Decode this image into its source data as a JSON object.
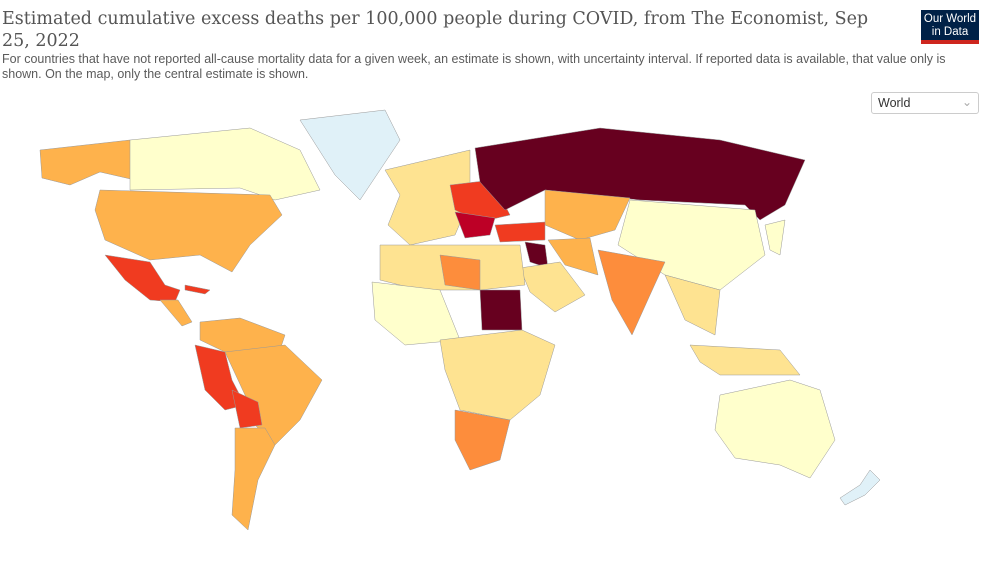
{
  "header": {
    "title": "Estimated cumulative excess deaths per 100,000 people during COVID, from The Economist, Sep 25, 2022",
    "subtitle": "For countries that have not reported all-cause mortality data for a given week, an estimate is shown, with uncertainty interval. If reported data is available, that value only is shown. On the map, only the central estimate is shown.",
    "logo": "Our World in Data"
  },
  "region_select": {
    "value": "World"
  },
  "colors": {
    "very_low": "#ffffcc",
    "low": "#fee391",
    "medium": "#feb24c",
    "high": "#fd8d3c",
    "very_high": "#f03b20",
    "extreme": "#bd0026",
    "max": "#67001f",
    "no_data": "#e0f1f8"
  },
  "regions": [
    {
      "name": "Alaska",
      "level": "medium"
    },
    {
      "name": "Canada",
      "level": "very_low"
    },
    {
      "name": "United States",
      "level": "medium"
    },
    {
      "name": "Mexico",
      "level": "very_high"
    },
    {
      "name": "Central America",
      "level": "medium"
    },
    {
      "name": "Cuba",
      "level": "very_high"
    },
    {
      "name": "Greenland",
      "level": "no_data"
    },
    {
      "name": "Northern South America",
      "level": "medium"
    },
    {
      "name": "Brazil",
      "level": "medium"
    },
    {
      "name": "Peru",
      "level": "very_high"
    },
    {
      "name": "Bolivia",
      "level": "very_high"
    },
    {
      "name": "Argentina",
      "level": "medium"
    },
    {
      "name": "Western Europe",
      "level": "low"
    },
    {
      "name": "Eastern Europe",
      "level": "very_high"
    },
    {
      "name": "Balkans",
      "level": "extreme"
    },
    {
      "name": "Russia",
      "level": "max"
    },
    {
      "name": "Central Asia",
      "level": "medium"
    },
    {
      "name": "Turkey",
      "level": "very_high"
    },
    {
      "name": "Iraq",
      "level": "max"
    },
    {
      "name": "Arabia",
      "level": "low"
    },
    {
      "name": "Iran",
      "level": "medium"
    },
    {
      "name": "China",
      "level": "very_low"
    },
    {
      "name": "India",
      "level": "high"
    },
    {
      "name": "Southeast Asia",
      "level": "low"
    },
    {
      "name": "Indonesia",
      "level": "low"
    },
    {
      "name": "North Africa",
      "level": "low"
    },
    {
      "name": "Libya",
      "level": "high"
    },
    {
      "name": "Sudan",
      "level": "max"
    },
    {
      "name": "West Africa",
      "level": "very_low"
    },
    {
      "name": "Central Africa",
      "level": "low"
    },
    {
      "name": "Southern Africa",
      "level": "high"
    },
    {
      "name": "Australia",
      "level": "very_low"
    },
    {
      "name": "New Zealand",
      "level": "no_data"
    },
    {
      "name": "Japan",
      "level": "very_low"
    }
  ]
}
